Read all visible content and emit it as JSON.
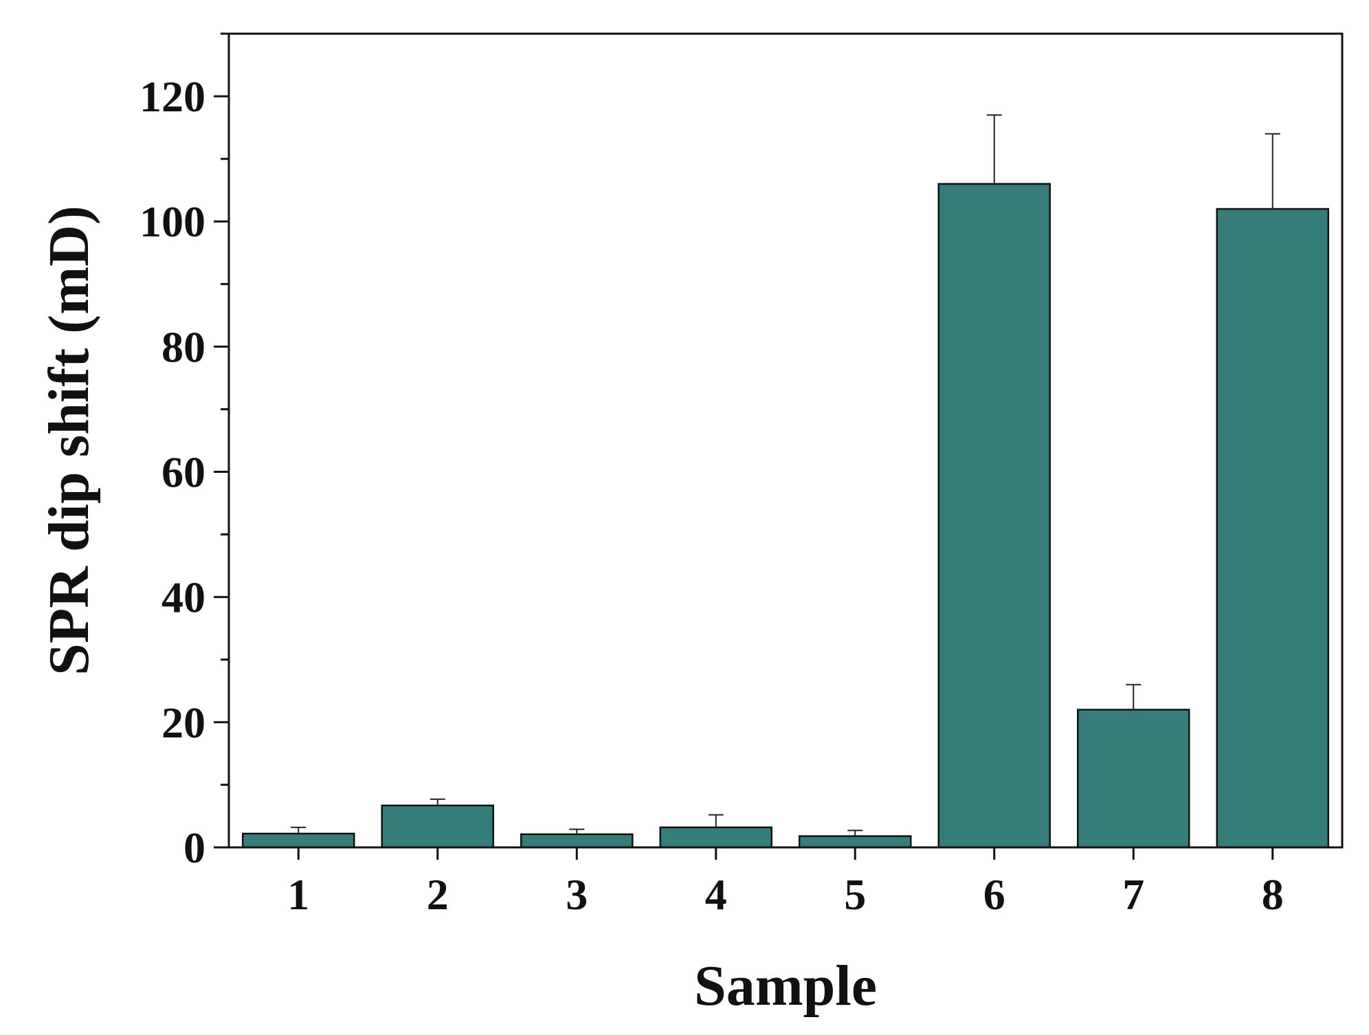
{
  "chart_data": {
    "type": "bar",
    "categories": [
      "1",
      "2",
      "3",
      "4",
      "5",
      "6",
      "7",
      "8"
    ],
    "values": [
      2.2,
      6.7,
      2.1,
      3.2,
      1.8,
      106,
      22,
      102
    ],
    "errors": [
      1.0,
      1.0,
      0.8,
      2.0,
      0.9,
      11,
      4,
      12
    ],
    "xlabel": "Sample",
    "ylabel": "SPR dip shift (mD)",
    "ylim": [
      0,
      130
    ],
    "yticks": [
      0,
      20,
      40,
      60,
      80,
      100,
      120
    ],
    "grid": false,
    "bar_color": "#367c7b"
  }
}
